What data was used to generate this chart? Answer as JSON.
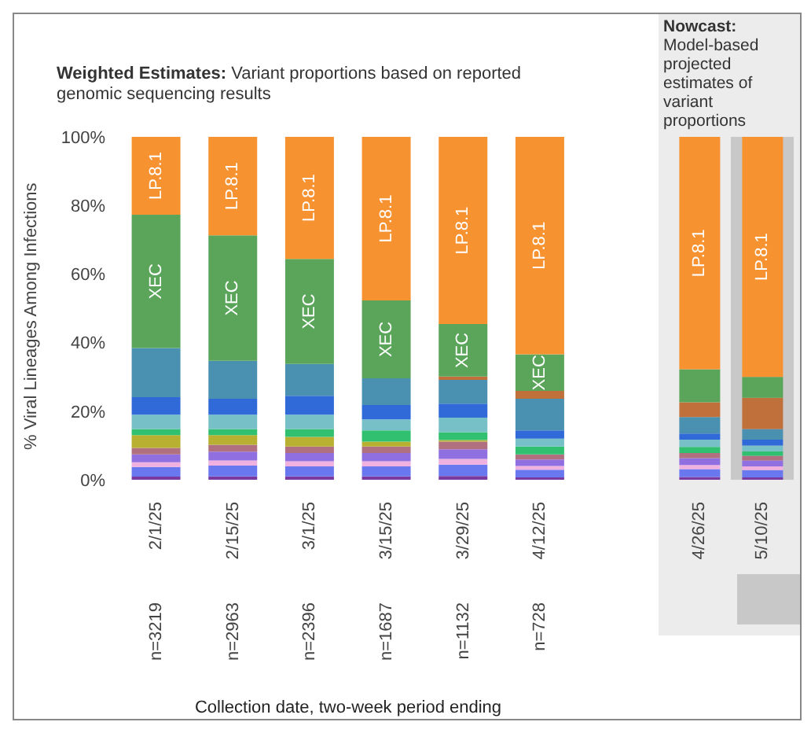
{
  "chart_data": [
    {
      "type": "bar",
      "stacked": true,
      "title": "Weighted Estimates:",
      "subtitle": "Variant proportions based on reported genomic sequencing results",
      "ylabel": "% Viral Lineages Among Infections",
      "xlabel": "Collection date, two-week period ending",
      "categories": [
        "2/1/25",
        "2/15/25",
        "3/1/25",
        "3/15/25",
        "3/29/25",
        "4/12/25"
      ],
      "ylim": [
        0,
        100
      ],
      "yticks": [
        {
          "value": 0,
          "label": "0%"
        },
        {
          "value": 20,
          "label": "20%"
        },
        {
          "value": 40,
          "label": "40%"
        },
        {
          "value": 60,
          "label": "60%"
        },
        {
          "value": 80,
          "label": "80%"
        },
        {
          "value": 100,
          "label": "100%"
        }
      ],
      "annotations": [
        "n=3219",
        "n=2963",
        "n=2396",
        "n=1687",
        "n=1132",
        "n=728"
      ],
      "series": [
        {
          "color": "#7a3aa0",
          "values": [
            0.9,
            1.0,
            1.0,
            1.0,
            1.1,
            0.7
          ]
        },
        {
          "color": "#6a78f0",
          "values": [
            2.8,
            3.1,
            2.9,
            2.9,
            3.3,
            2.2
          ]
        },
        {
          "color": "#f0b0e0",
          "values": [
            1.4,
            1.5,
            1.5,
            1.5,
            1.7,
            1.1
          ]
        },
        {
          "color": "#9070e0",
          "values": [
            2.3,
            2.6,
            2.4,
            2.4,
            2.8,
            1.9
          ]
        },
        {
          "color": "#b07080",
          "values": [
            1.9,
            2.0,
            1.9,
            1.9,
            2.2,
            1.5
          ]
        },
        {
          "color": "#b8b030",
          "values": [
            3.7,
            2.8,
            2.8,
            1.4,
            0.5,
            0
          ]
        },
        {
          "color": "#30c070",
          "values": [
            1.8,
            1.8,
            2.3,
            3.3,
            2.3,
            2.3
          ]
        },
        {
          "color": "#78c0c8",
          "values": [
            4.2,
            4.2,
            4.2,
            3.2,
            4.2,
            2.3
          ]
        },
        {
          "color": "#2f6ad8",
          "values": [
            5.1,
            4.6,
            5.5,
            4.2,
            4.1,
            2.4
          ]
        },
        {
          "color": "#4a90b0",
          "values": [
            14.3,
            11.1,
            9.3,
            7.8,
            6.9,
            9.2
          ]
        },
        {
          "color": "#c0703a",
          "values": [
            0,
            0,
            0,
            0,
            1.0,
            2.3
          ]
        },
        {
          "name": "XEC",
          "color": "#5aa55a",
          "values": [
            38.9,
            36.6,
            30.6,
            22.7,
            15.3,
            10.7
          ]
        },
        {
          "name": "LP.8.1",
          "color": "#f79230",
          "values": [
            22.7,
            28.7,
            35.6,
            47.7,
            54.6,
            63.4
          ]
        }
      ]
    },
    {
      "type": "bar",
      "stacked": true,
      "title": "Nowcast:",
      "subtitle": "Model-based projected estimates of variant proportions",
      "categories": [
        "4/26/25",
        "5/10/25"
      ],
      "ylim": [
        0,
        100
      ],
      "tick_labels": "x",
      "bands": [
        {
          "axis": "x",
          "from": "5/10/25",
          "to": "5/10/25",
          "color": "#c8c8c8"
        }
      ],
      "series": [
        {
          "color": "#7a3aa0",
          "values": [
            0.8,
            0.7
          ]
        },
        {
          "color": "#6a78f0",
          "values": [
            2.3,
            2.1
          ]
        },
        {
          "color": "#f0b0e0",
          "values": [
            1.2,
            1.1
          ]
        },
        {
          "color": "#9070e0",
          "values": [
            2.0,
            1.7
          ]
        },
        {
          "color": "#b07080",
          "values": [
            1.5,
            1.4
          ]
        },
        {
          "color": "#30c070",
          "values": [
            1.8,
            1.3
          ]
        },
        {
          "color": "#78c0c8",
          "values": [
            2.1,
            1.7
          ]
        },
        {
          "color": "#2f6ad8",
          "values": [
            1.8,
            1.7
          ]
        },
        {
          "color": "#4a90b0",
          "values": [
            4.8,
            3.1
          ]
        },
        {
          "color": "#c0703a",
          "values": [
            4.3,
            9.1
          ]
        },
        {
          "color": "#5aa55a",
          "values": [
            9.6,
            6.1
          ]
        },
        {
          "name": "LP.8.1",
          "color": "#f79230",
          "values": [
            67.8,
            70.0
          ]
        }
      ]
    }
  ]
}
